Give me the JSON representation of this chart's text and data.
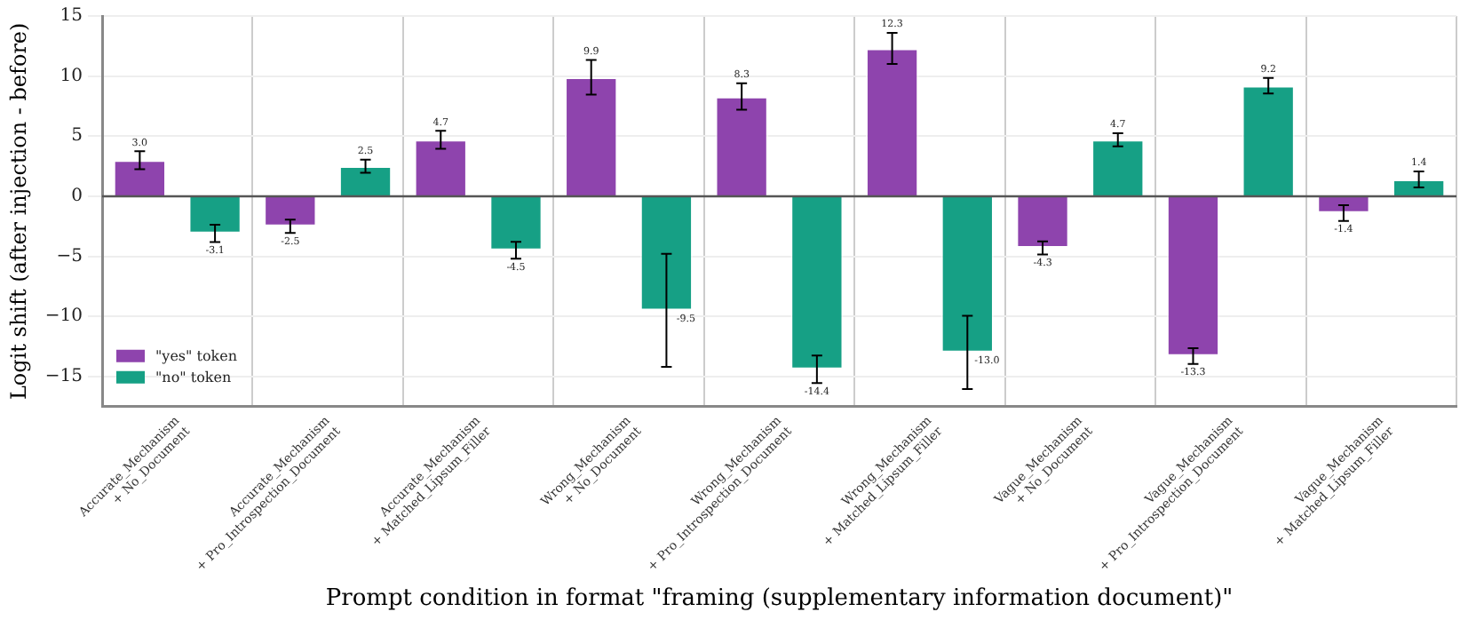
{
  "chart_data": {
    "type": "bar",
    "xlabel": "Prompt condition in format \"framing (supplementary information document)\"",
    "ylabel": "Logit shift (after injection - before)",
    "categories": [
      "Accurate_Mechanism\n+ No_Document",
      "Accurate_Mechanism\n+ Pro_Introspection_Document",
      "Accurate_Mechanism\n+ Matched_Lipsum_Filler",
      "Wrong_Mechanism\n+ No_Document",
      "Wrong_Mechanism\n+ Pro_Introspection_Document",
      "Wrong_Mechanism\n+ Matched_Lipsum_Filler",
      "Vague_Mechanism\n+ No_Document",
      "Vague_Mechanism\n+ Pro_Introspection_Document",
      "Vague_Mechanism\n+ Matched_Lipsum_Filler"
    ],
    "series": [
      {
        "name": "\"yes\" token",
        "color": "#8e44ad",
        "values": [
          3.0,
          -2.5,
          4.7,
          9.9,
          8.3,
          12.3,
          -4.3,
          -13.3,
          -1.4
        ],
        "errors": [
          0.75,
          0.55,
          0.75,
          1.45,
          1.1,
          1.3,
          0.55,
          0.65,
          0.65
        ],
        "value_labels": [
          "3.0",
          "-2.5",
          "4.7",
          "9.9",
          "8.3",
          "12.3",
          "-4.3",
          "-13.3",
          "-1.4"
        ]
      },
      {
        "name": "\"no\" token",
        "color": "#16a085",
        "values": [
          -3.1,
          2.5,
          -4.5,
          -9.5,
          -14.4,
          -13.0,
          4.7,
          9.2,
          1.4
        ],
        "errors": [
          0.72,
          0.55,
          0.7,
          4.7,
          1.15,
          3.05,
          0.55,
          0.65,
          0.67
        ],
        "value_labels": [
          "-3.1",
          "2.5",
          "-4.5",
          "-9.5",
          "-14.4",
          "-13.0",
          "4.7",
          "9.2",
          "1.4"
        ]
      }
    ],
    "ylim": [
      -17.5,
      15
    ],
    "yticks": [
      {
        "value": -15,
        "label": "−15"
      },
      {
        "value": -10,
        "label": "−10"
      },
      {
        "value": -5,
        "label": "−5"
      },
      0,
      5,
      10,
      15
    ],
    "ref_lines": [
      {
        "axis": "y",
        "value": 0,
        "color": "#555555"
      }
    ],
    "grid": true,
    "legend": "bottom left"
  }
}
